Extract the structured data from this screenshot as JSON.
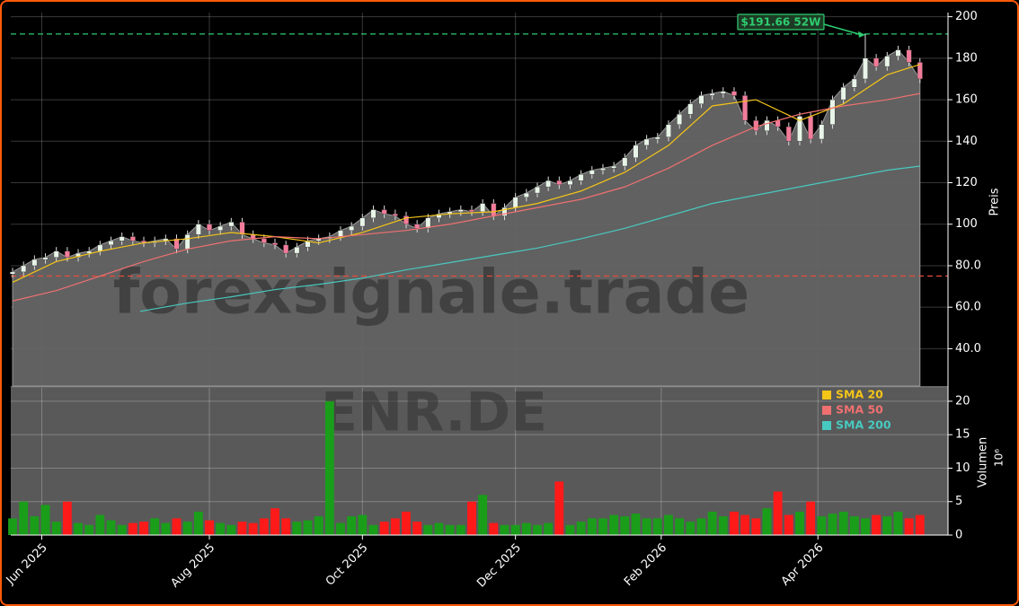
{
  "chart_data": {
    "type": "candlestick",
    "watermark": "forexsignale.trade",
    "symbol": "ENR.DE",
    "ylabel": "Preis",
    "x": [
      0,
      3,
      6,
      9,
      12,
      15,
      18,
      21,
      24,
      27,
      30,
      33,
      36,
      39,
      42,
      45,
      48,
      51,
      54,
      57,
      60,
      63,
      66,
      69,
      72,
      75,
      78,
      81,
      84,
      87,
      90,
      93,
      96,
      99,
      102,
      105,
      108,
      111,
      114,
      117,
      120,
      123,
      126,
      129,
      132,
      135,
      138,
      141,
      144,
      147,
      150,
      153,
      156,
      159,
      162,
      165,
      168,
      171,
      174,
      177,
      180,
      183,
      186,
      189,
      192,
      195,
      198,
      201,
      204,
      207,
      210,
      213,
      216,
      219,
      222,
      225,
      228,
      231,
      234,
      237,
      240,
      243,
      246,
      249
    ],
    "open": [
      76,
      77,
      80,
      83,
      84,
      87,
      84,
      86,
      87,
      90,
      92,
      94,
      92,
      91,
      92,
      93,
      88,
      95,
      100,
      97,
      99,
      101,
      95,
      93,
      91,
      90,
      86,
      89,
      92,
      93,
      94,
      97,
      99,
      103,
      107,
      105,
      104,
      100,
      98,
      103,
      105,
      106,
      107,
      106,
      110,
      104,
      108,
      113,
      115,
      118,
      121,
      119,
      121,
      124,
      126,
      127,
      128,
      132,
      138,
      141,
      142,
      148,
      153,
      158,
      162,
      163,
      164,
      162,
      150,
      145,
      150,
      147,
      140,
      152,
      141,
      148,
      160,
      166,
      170,
      180,
      176,
      181,
      184,
      178
    ],
    "high": [
      79,
      82,
      85,
      86,
      89,
      89,
      88,
      89,
      92,
      94,
      96,
      96,
      94,
      94,
      95,
      95,
      97,
      102,
      102,
      101,
      103,
      103,
      97,
      95,
      93,
      92,
      91,
      94,
      95,
      96,
      99,
      101,
      105,
      109,
      109,
      107,
      106,
      102,
      105,
      107,
      108,
      109,
      109,
      112,
      112,
      110,
      115,
      117,
      120,
      123,
      123,
      123,
      126,
      128,
      129,
      130,
      134,
      140,
      143,
      144,
      150,
      155,
      160,
      164,
      165,
      166,
      166,
      164,
      152,
      152,
      152,
      149,
      154,
      154,
      150,
      162,
      168,
      172,
      191.66,
      182,
      183,
      186,
      186,
      180
    ],
    "low": [
      74,
      75,
      78,
      81,
      82,
      82,
      82,
      84,
      85,
      88,
      90,
      90,
      89,
      89,
      90,
      86,
      86,
      93,
      95,
      95,
      97,
      93,
      91,
      89,
      88,
      84,
      84,
      87,
      90,
      91,
      92,
      95,
      97,
      101,
      103,
      102,
      98,
      96,
      96,
      101,
      103,
      104,
      104,
      104,
      102,
      102,
      106,
      111,
      113,
      116,
      117,
      117,
      119,
      122,
      124,
      125,
      126,
      130,
      136,
      139,
      140,
      146,
      151,
      156,
      160,
      161,
      160,
      148,
      143,
      143,
      145,
      138,
      138,
      139,
      139,
      146,
      158,
      164,
      168,
      174,
      174,
      179,
      176,
      168
    ],
    "close": [
      77,
      80,
      83,
      84,
      87,
      84,
      86,
      87,
      90,
      92,
      94,
      92,
      91,
      92,
      93,
      88,
      95,
      100,
      97,
      99,
      101,
      95,
      93,
      91,
      90,
      86,
      89,
      92,
      93,
      94,
      97,
      99,
      103,
      107,
      105,
      104,
      100,
      98,
      103,
      105,
      106,
      107,
      106,
      110,
      104,
      108,
      113,
      115,
      118,
      121,
      119,
      121,
      124,
      126,
      127,
      128,
      132,
      138,
      141,
      142,
      148,
      153,
      158,
      162,
      163,
      164,
      162,
      150,
      145,
      150,
      147,
      140,
      152,
      141,
      148,
      160,
      166,
      170,
      180,
      176,
      181,
      184,
      178,
      170
    ],
    "up_color": "#e8f5e8",
    "down_color": "#f27c9a",
    "area_color": "#666666",
    "xlim": [
      -0.5,
      256.7
    ],
    "xticks": [
      {
        "value": 8,
        "label": "Jun 2025"
      },
      {
        "value": 54,
        "label": "Aug 2025"
      },
      {
        "value": 96,
        "label": "Oct 2025"
      },
      {
        "value": 138,
        "label": "Dec 2025"
      },
      {
        "value": 178,
        "label": "Feb 2026"
      },
      {
        "value": 221,
        "label": "Apr 2026"
      }
    ],
    "ylim": [
      22,
      202
    ],
    "yticks": [
      {
        "value": 40,
        "label": "40.0"
      },
      {
        "value": 60,
        "label": "60.0"
      },
      {
        "value": 80,
        "label": "80.0"
      },
      100,
      120,
      140,
      160,
      180,
      200
    ],
    "grid": true,
    "sma": [
      {
        "name": "SMA 20",
        "color": "#f5c518",
        "x": [
          0,
          12,
          24,
          36,
          48,
          60,
          72,
          84,
          96,
          108,
          120,
          132,
          144,
          156,
          168,
          180,
          192,
          204,
          216,
          228,
          240,
          249
        ],
        "values": [
          72,
          82,
          87,
          91,
          93,
          96,
          94,
          91,
          96,
          103,
          105,
          106,
          110,
          116,
          125,
          138,
          157,
          160,
          150,
          158,
          172,
          177
        ]
      },
      {
        "name": "SMA 50",
        "color": "#f07070",
        "x": [
          0,
          12,
          24,
          36,
          48,
          60,
          72,
          84,
          96,
          108,
          120,
          132,
          144,
          156,
          168,
          180,
          192,
          204,
          216,
          228,
          240,
          249
        ],
        "values": [
          63,
          68,
          75,
          82,
          88,
          92,
          94,
          93,
          95,
          97,
          100,
          104,
          108,
          112,
          118,
          127,
          138,
          147,
          153,
          157,
          160,
          163
        ]
      },
      {
        "name": "SMA 200",
        "color": "#48c9c0",
        "x": [
          35,
          48,
          60,
          72,
          84,
          96,
          108,
          120,
          132,
          144,
          156,
          168,
          180,
          192,
          204,
          216,
          228,
          240,
          249
        ],
        "values": [
          58,
          62,
          65,
          68.5,
          71,
          74,
          78,
          81.5,
          85,
          88.5,
          93,
          98,
          104,
          110,
          114,
          118,
          122,
          126,
          128
        ]
      }
    ],
    "legend": "upper right",
    "hlines": [
      {
        "value": 191.66,
        "color": "#2ecc71"
      },
      {
        "value": 75,
        "color": "#e74c3c"
      }
    ],
    "annotation": {
      "text": "$191.66 52W",
      "x": 234,
      "y": 191.66,
      "color": "#2ecc71"
    },
    "volume": {
      "ylabel": "Volumen",
      "exponent_label": "10⁶",
      "ylim": [
        0,
        22
      ],
      "yticks": [
        0,
        5,
        10,
        15,
        20
      ],
      "up_color": "#1a9e1a",
      "down_color": "#ff1a1a",
      "values": [
        2.5,
        5,
        2.8,
        4.5,
        2,
        5,
        1.8,
        1.5,
        3,
        2.2,
        1.5,
        1.8,
        2,
        2.5,
        1.8,
        2.5,
        2,
        3.5,
        2.2,
        1.8,
        1.5,
        2,
        1.8,
        2.5,
        4,
        2.5,
        2,
        2.2,
        2.8,
        20,
        1.8,
        2.8,
        3,
        1.5,
        2,
        2.5,
        3.5,
        2,
        1.5,
        1.8,
        1.5,
        1.5,
        5,
        6,
        1.8,
        1.5,
        1.5,
        1.8,
        1.5,
        1.8,
        8,
        1.5,
        2,
        2.5,
        2.5,
        3,
        2.8,
        3.2,
        2.5,
        2.5,
        3,
        2.5,
        2,
        2.5,
        3.5,
        2.8,
        3.5,
        3,
        2.5,
        4,
        6.5,
        3,
        3.5,
        5,
        2.8,
        3.2,
        3.5,
        2.8,
        2.5,
        3,
        2.8,
        3.5,
        2.5,
        3
      ]
    }
  }
}
